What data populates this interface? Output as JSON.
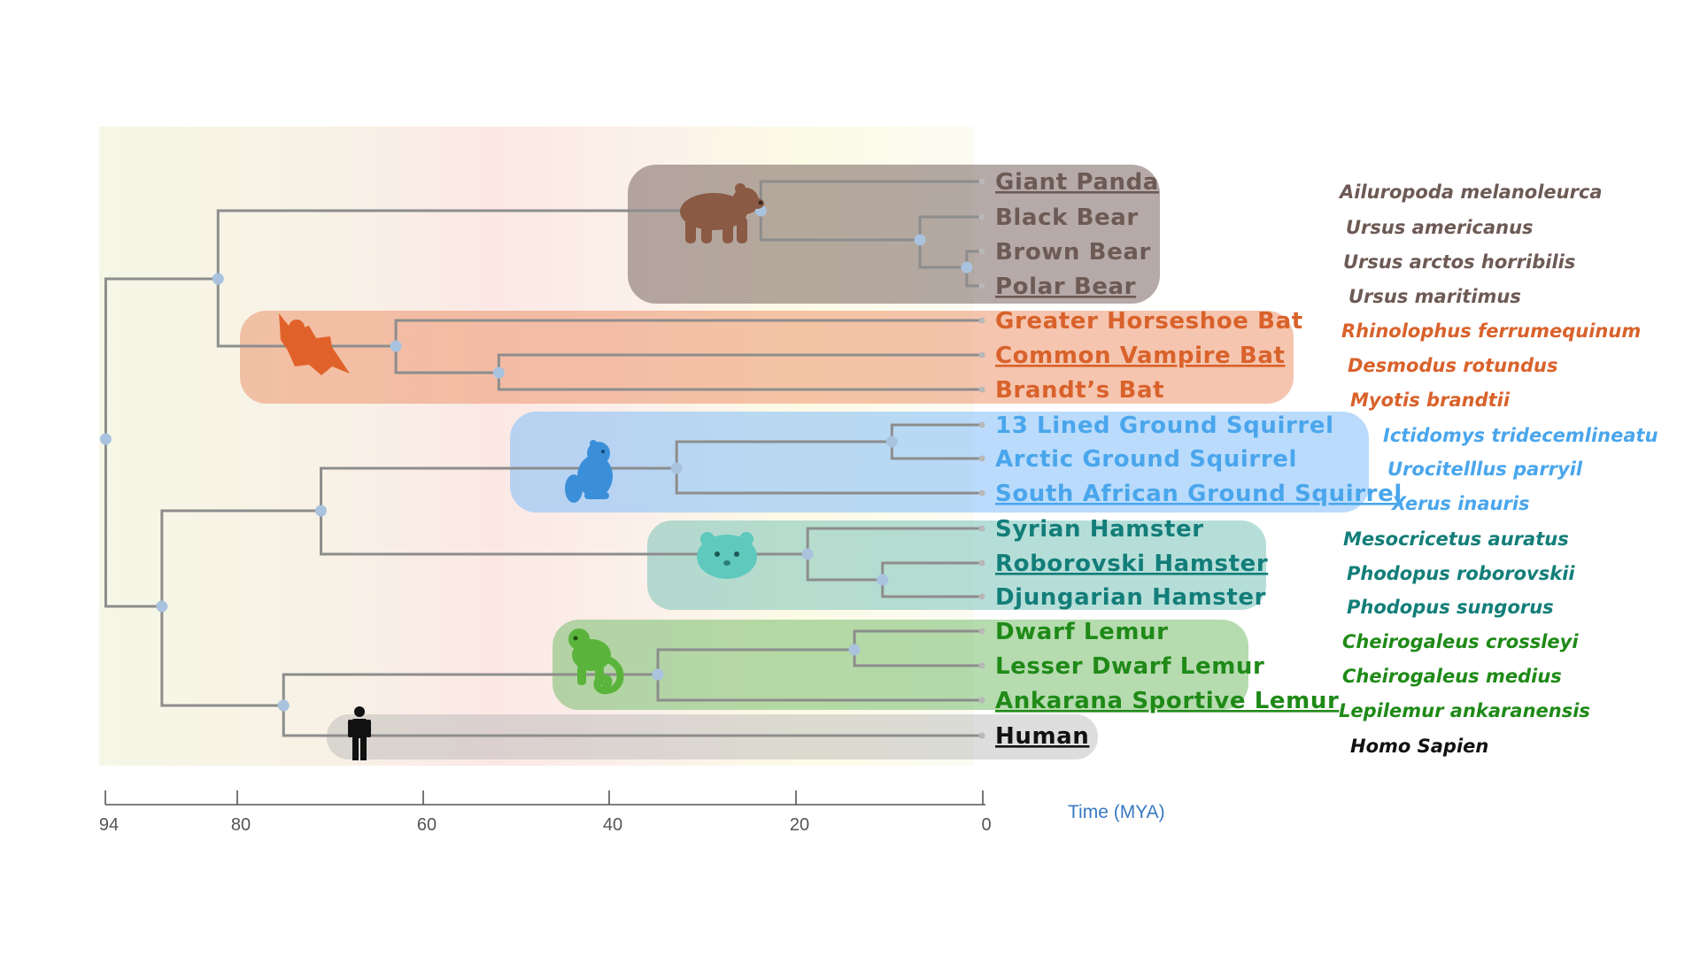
{
  "axis": {
    "title": "Time (MYA)",
    "ticks": [
      94,
      80,
      60,
      40,
      20,
      0
    ]
  },
  "colors": {
    "bears": "#6d5a55",
    "bats": "#d9622b",
    "squirrels": "#4aa6ec",
    "hamsters": "#137e79",
    "lemurs": "#1f8a17",
    "human": "#111111",
    "branch": "#8d8d8d",
    "node": "#a9c3df"
  },
  "groups": [
    {
      "id": "bears",
      "icon": "bear-icon",
      "color": "#6d5a55",
      "bg": "rgba(120,100,95,0.55)",
      "species": [
        {
          "common": "Giant Panda",
          "sci": "Ailuropoda melanoleurca",
          "underline": true
        },
        {
          "common": "Black Bear",
          "sci": "Ursus americanus",
          "underline": false
        },
        {
          "common": "Brown Bear",
          "sci": "Ursus arctos horribilis",
          "underline": false
        },
        {
          "common": "Polar Bear ",
          "sci": "Ursus maritimus",
          "underline": true
        }
      ]
    },
    {
      "id": "bats",
      "icon": "bat-icon",
      "color": "#d9622b",
      "bg": "rgba(236,150,110,0.55)",
      "species": [
        {
          "common": "Greater Horseshoe Bat",
          "sci": "Rhinolophus ferrumequinum",
          "underline": false
        },
        {
          "common": "Common Vampire Bat ",
          "sci": "Desmodus rotundus",
          "underline": true
        },
        {
          "common": "Brandt’s Bat",
          "sci": "Myotis brandtii",
          "underline": false
        }
      ]
    },
    {
      "id": "squirrels",
      "icon": "squirrel-icon",
      "color": "#4aa6ec",
      "bg": "rgba(130,190,250,0.55)",
      "species": [
        {
          "common": "13 Lined Ground Squirrel",
          "sci": "Ictidomys tridecemlineatu",
          "underline": false
        },
        {
          "common": "Arctic Ground Squirrel",
          "sci": "Urocitelllus parryil",
          "underline": false
        },
        {
          "common": "South African Ground Squirrel ",
          "sci": "Xerus inauris",
          "underline": true
        }
      ]
    },
    {
      "id": "hamsters",
      "icon": "hamster-icon",
      "color": "#137e79",
      "bg": "rgba(110,190,180,0.5)",
      "species": [
        {
          "common": "Syrian Hamster",
          "sci": "Mesocricetus auratus",
          "underline": false
        },
        {
          "common": "Roborovski Hamster",
          "sci": "Phodopus roborovskii",
          "underline": true
        },
        {
          "common": "Djungarian Hamster",
          "sci": "Phodopus sungorus",
          "underline": false
        }
      ]
    },
    {
      "id": "lemurs",
      "icon": "lemur-icon",
      "color": "#1f8a17",
      "bg": "rgba(120,190,110,0.55)",
      "species": [
        {
          "common": "Dwarf Lemur",
          "sci": "Cheirogaleus crossleyi",
          "underline": false
        },
        {
          "common": "Lesser Dwarf Lemur",
          "sci": "Cheirogaleus medius",
          "underline": false
        },
        {
          "common": "Ankarana Sportive Lemur ",
          "sci": "Lepilemur ankaranensis",
          "underline": true
        }
      ]
    },
    {
      "id": "human",
      "icon": "human-icon",
      "color": "#111111",
      "bg": "rgba(180,180,180,0.45)",
      "species": [
        {
          "common": "Human",
          "sci": "Homo Sapien",
          "underline": true
        }
      ]
    }
  ]
}
